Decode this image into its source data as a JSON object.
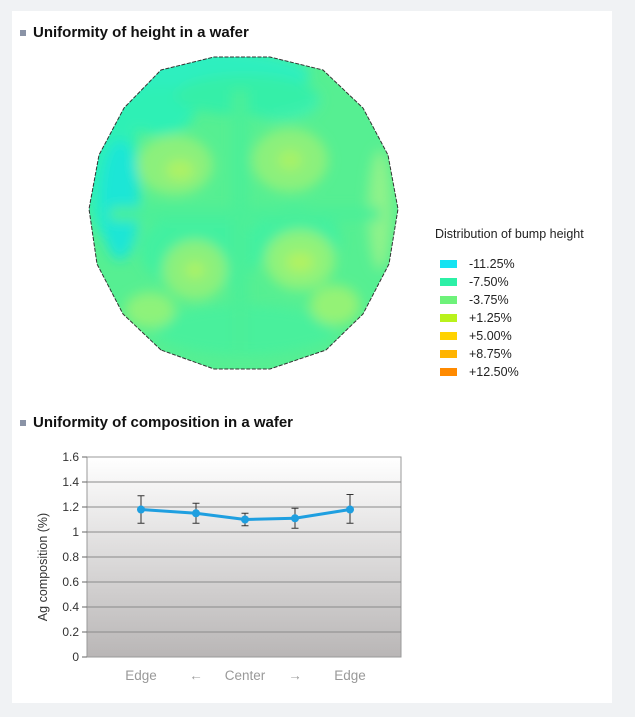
{
  "height_section": {
    "title": "Uniformity of height in a wafer",
    "legend_title": "Distribution of bump height",
    "legend": [
      {
        "label": "-11.25%",
        "color": "#14e3f2"
      },
      {
        "label": "-7.50%",
        "color": "#2cf0a6"
      },
      {
        "label": "-3.75%",
        "color": "#6ef27a"
      },
      {
        "label": "+1.25%",
        "color": "#b9f21c"
      },
      {
        "label": "+5.00%",
        "color": "#ffd200"
      },
      {
        "label": "+8.75%",
        "color": "#ffb400"
      },
      {
        "label": "+12.50%",
        "color": "#ff8a00"
      }
    ]
  },
  "composition_section": {
    "title": "Uniformity of composition in a wafer"
  },
  "chart_data": {
    "type": "line",
    "title": "",
    "ylabel": "Ag composition (%)",
    "xlabel": "",
    "categories": [
      "Edge",
      "←",
      "Center",
      "→",
      "Edge"
    ],
    "y_ticks": [
      "0",
      "0.2",
      "0.4",
      "0.6",
      "0.8",
      "1",
      "1.2",
      "1.4",
      "1.6"
    ],
    "ylim": [
      0,
      1.6
    ],
    "grid": true,
    "series": [
      {
        "x": [
          0,
          1,
          2,
          3,
          4
        ],
        "values": [
          1.18,
          1.15,
          1.1,
          1.11,
          1.18
        ],
        "err_low": [
          1.07,
          1.07,
          1.05,
          1.03,
          1.07
        ],
        "err_high": [
          1.29,
          1.23,
          1.15,
          1.19,
          1.3
        ],
        "color": "#1f9fe0"
      }
    ]
  }
}
